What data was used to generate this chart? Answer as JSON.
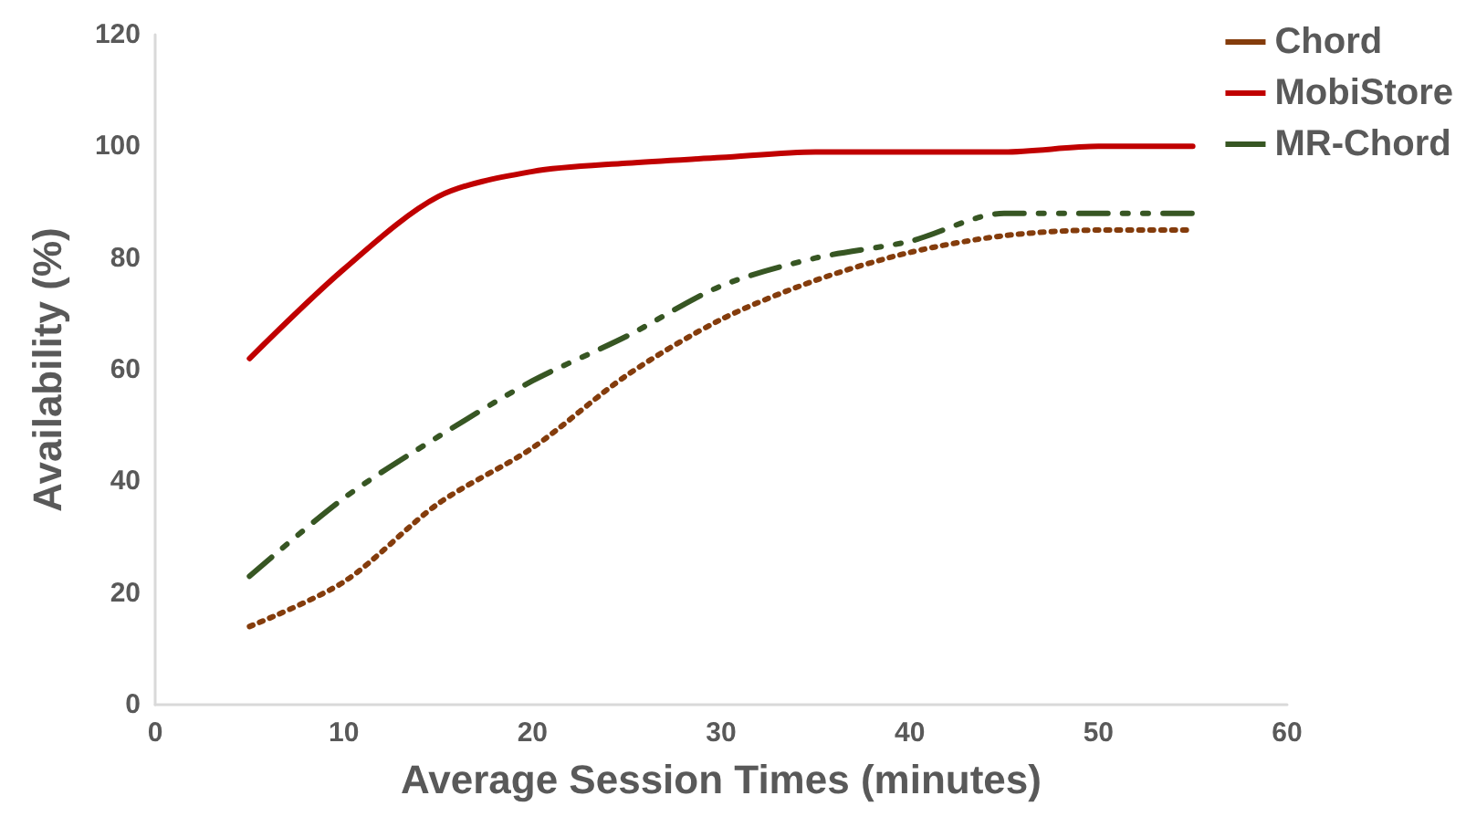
{
  "chart_data": {
    "type": "line",
    "xlabel": "Average Session Times (minutes)",
    "ylabel": "Availability (%)",
    "x": [
      5,
      10,
      15,
      20,
      25,
      30,
      35,
      40,
      45,
      50,
      55
    ],
    "series": [
      {
        "name": "Chord",
        "color": "#843c0c",
        "line_style": "dotted",
        "values": [
          14,
          22,
          36,
          46,
          59,
          69,
          76,
          81,
          84,
          85,
          85
        ]
      },
      {
        "name": "MobiStore",
        "color": "#c00000",
        "line_style": "solid",
        "values": [
          62,
          78,
          91,
          95.5,
          97,
          98,
          99,
          99,
          99,
          100,
          100
        ]
      },
      {
        "name": "MR-Chord",
        "color": "#375623",
        "line_style": "dashed",
        "values": [
          23,
          37,
          48,
          58,
          66,
          75,
          80,
          83,
          88,
          88,
          88
        ]
      }
    ],
    "xlim": [
      0,
      60
    ],
    "xticks": [
      0,
      10,
      20,
      30,
      40,
      50,
      60
    ],
    "ylim": [
      0,
      120
    ],
    "yticks": [
      0,
      20,
      40,
      60,
      80,
      100,
      120
    ],
    "grid": false,
    "legend": "top right",
    "marker": "none"
  }
}
